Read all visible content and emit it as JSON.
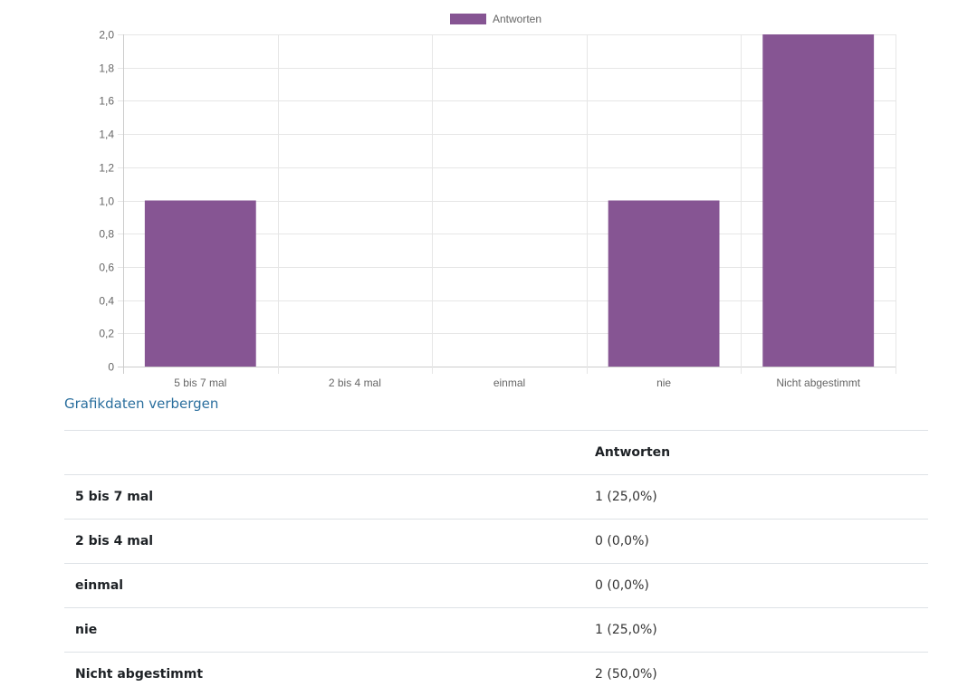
{
  "chart_data": {
    "type": "bar",
    "categories": [
      "5 bis 7 mal",
      "2 bis 4 mal",
      "einmal",
      "nie",
      "Nicht abgestimmt"
    ],
    "series": [
      {
        "name": "Antworten",
        "values": [
          1,
          0,
          0,
          1,
          2
        ],
        "color": "#865593"
      }
    ],
    "ylim": [
      0,
      2
    ],
    "yticks": [
      "0",
      "0,2",
      "0,4",
      "0,6",
      "0,8",
      "1,0",
      "1,2",
      "1,4",
      "1,6",
      "1,8",
      "2,0"
    ],
    "grid": true,
    "legend": "top-center"
  },
  "toggle_link": "Grafikdaten verbergen",
  "table": {
    "header": [
      "",
      "Antworten"
    ],
    "rows": [
      {
        "label": "5 bis 7 mal",
        "value": "1 (25,0%)"
      },
      {
        "label": "2 bis 4 mal",
        "value": "0 (0,0%)"
      },
      {
        "label": "einmal",
        "value": "0 (0,0%)"
      },
      {
        "label": "nie",
        "value": "1 (25,0%)"
      },
      {
        "label": "Nicht abgestimmt",
        "value": "2 (50,0%)"
      }
    ]
  }
}
